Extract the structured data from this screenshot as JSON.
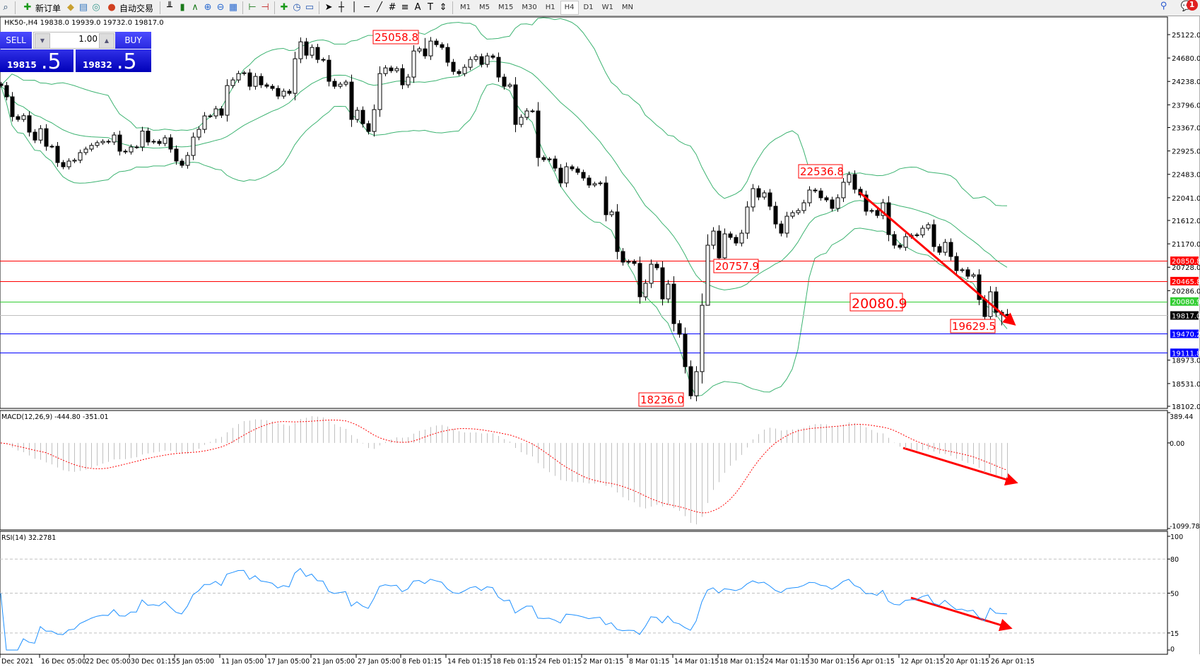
{
  "toolbar": {
    "new_order_label": "新订单",
    "auto_trading_label": "自动交易",
    "timeframes": [
      "M1",
      "M5",
      "M15",
      "M30",
      "H1",
      "H4",
      "D1",
      "W1",
      "MN"
    ],
    "active_timeframe": "H4",
    "notification_count": "1",
    "icons": [
      "new-order-icon",
      "market-watch-icon",
      "navigator-icon",
      "signals-icon",
      "auto-trading-icon",
      "bar-chart-icon",
      "candlestick-icon",
      "line-chart-icon",
      "zoom-in-icon",
      "zoom-out-icon",
      "tile-windows-icon",
      "chart-shift-icon",
      "autoscroll-icon",
      "indicators-icon",
      "periods-icon",
      "templates-icon",
      "cursor-icon",
      "crosshair-icon",
      "vertical-line-icon",
      "horizontal-line-icon",
      "trendline-icon",
      "fibonacci-icon",
      "fibo-fan-icon",
      "text-icon",
      "text-label-icon",
      "arrows-icon",
      "search-icon",
      "chat-icon"
    ]
  },
  "chart": {
    "symbol_info": "HK50-,H4  19838.0 19939.0 19732.0 19817.0"
  },
  "trade_panel": {
    "sell_label": "SELL",
    "buy_label": "BUY",
    "lot": "1.00",
    "sell_price_main": "19815",
    "sell_price_frac": ".5",
    "buy_price_main": "19832",
    "buy_price_frac": ".5"
  },
  "chart_data": [
    {
      "type": "candlestick",
      "symbol": "HK50-",
      "timeframe": "H4",
      "last_bar": {
        "open": 19838.0,
        "high": 19939.0,
        "low": 19732.0,
        "close": 19817.0
      },
      "ylim": [
        18102.0,
        25122.0
      ],
      "y_ticks": [
        "25122.0",
        "24680.0",
        "24238.0",
        "23796.0",
        "23367.0",
        "22925.0",
        "22483.0",
        "22041.0",
        "21612.0",
        "21170.0",
        "20728.0",
        "20286.0",
        "18973.0",
        "18531.0",
        "18102.0"
      ],
      "x_ticks": [
        "Dec 2021",
        "16 Dec 05:00",
        "22 Dec 05:00",
        "30 Dec 01:15",
        "5 Jan 05:00",
        "11 Jan 05:00",
        "17 Jan 05:00",
        "21 Jan 05:00",
        "27 Jan 05:00",
        "8 Feb 01:15",
        "14 Feb 01:15",
        "18 Feb 01:15",
        "24 Feb 01:15",
        "2 Mar 01:15",
        "8 Mar 01:15",
        "14 Mar 01:15",
        "18 Mar 01:15",
        "24 Mar 01:15",
        "30 Mar 01:15",
        "6 Apr 01:15",
        "12 Apr 01:15",
        "20 Apr 01:15",
        "26 Apr 01:15"
      ],
      "closes": [
        24160,
        23947,
        23573,
        23520,
        23590,
        23280,
        23130,
        23345,
        23013,
        23013,
        22706,
        22626,
        22733,
        22750,
        22893,
        22960,
        23030,
        23080,
        23106,
        23093,
        23226,
        22920,
        22906,
        23000,
        23000,
        23300,
        23093,
        23106,
        23066,
        23173,
        22960,
        22733,
        22653,
        22840,
        23186,
        23333,
        23586,
        23586,
        23720,
        23600,
        24160,
        24266,
        24386,
        24400,
        24146,
        24333,
        24173,
        24146,
        24106,
        23960,
        24053,
        24013,
        24666,
        24986,
        24733,
        24880,
        24653,
        24640,
        24240,
        24146,
        24186,
        24226,
        23520,
        23693,
        23440,
        23293,
        23706,
        24386,
        24493,
        24440,
        24480,
        24173,
        24320,
        24813,
        24853,
        24720,
        25000,
        24933,
        24880,
        24600,
        24426,
        24386,
        24506,
        24653,
        24706,
        24560,
        24720,
        24693,
        24320,
        24146,
        24173,
        23426,
        23560,
        23680,
        23680,
        22800,
        22760,
        22773,
        22600,
        22320,
        22626,
        22586,
        22520,
        22413,
        22280,
        22306,
        22320,
        21720,
        21773,
        21025,
        20825,
        20838,
        20800,
        20170,
        20425,
        20785,
        20718,
        20130,
        20410,
        19663,
        19463,
        18850,
        18300,
        18756,
        20010,
        21145,
        21411,
        20905,
        21358,
        21292,
        21185,
        21372,
        21866,
        22213,
        22053,
        22133,
        21880,
        21545,
        21372,
        21692,
        21758,
        21799,
        21946,
        22186,
        22170,
        22040,
        22000,
        21840,
        22040,
        22333,
        22480,
        22200,
        22093,
        21786,
        21800,
        21706,
        21946,
        21345,
        21145,
        21105,
        21305,
        21332,
        21340,
        21465,
        21532,
        21118,
        21011,
        21198,
        20931,
        20665,
        20680,
        20558,
        20585,
        20117,
        19797,
        20264,
        19877,
        19837,
        19817
      ],
      "overlay": "Bollinger Bands",
      "annotations": [
        {
          "text": "25058.8",
          "kind": "high"
        },
        {
          "text": "22536.8",
          "kind": "high"
        },
        {
          "text": "20757.9",
          "kind": "low"
        },
        {
          "text": "18236.0",
          "kind": "low"
        },
        {
          "text": "20080.9",
          "kind": "level"
        },
        {
          "text": "19629.5",
          "kind": "low"
        }
      ],
      "horizontal_lines": [
        {
          "value": 20850.8,
          "label": "20850.8",
          "color": "#ff0000"
        },
        {
          "value": 20465.8,
          "label": "20465.8",
          "color": "#ff0000"
        },
        {
          "value": 20080.9,
          "label": "20080.9",
          "color": "#32cd32"
        },
        {
          "value": 19817.0,
          "label": "19817.0",
          "color": "#c0c0c0",
          "label_bg": "#000000"
        },
        {
          "value": 19470.2,
          "label": "19470.2",
          "color": "#0000ff"
        },
        {
          "value": 19111.8,
          "label": "19111.8",
          "color": "#0000ff"
        }
      ],
      "trend_arrow": {
        "color": "#ff0000",
        "direction": "down"
      }
    },
    {
      "type": "bar+line",
      "title": "MACD(12,26,9) -444.80 -351.01",
      "ylim": [
        -1099.78,
        389.44
      ],
      "y_ticks": [
        "389.44",
        "0.00",
        "-1099.78"
      ],
      "histogram_color": "#c0c0c0",
      "signal_color": "#ff0000",
      "trend_arrow": {
        "color": "#ff0000",
        "direction": "down"
      }
    },
    {
      "type": "line",
      "title": "RSI(14) 32.2781",
      "ylim": [
        0,
        100
      ],
      "y_ticks": [
        "100",
        "80",
        "50",
        "15",
        "0"
      ],
      "levels": [
        80,
        50,
        15
      ],
      "line_color": "#1e90ff",
      "trend_arrow": {
        "color": "#ff0000",
        "direction": "down"
      }
    }
  ]
}
